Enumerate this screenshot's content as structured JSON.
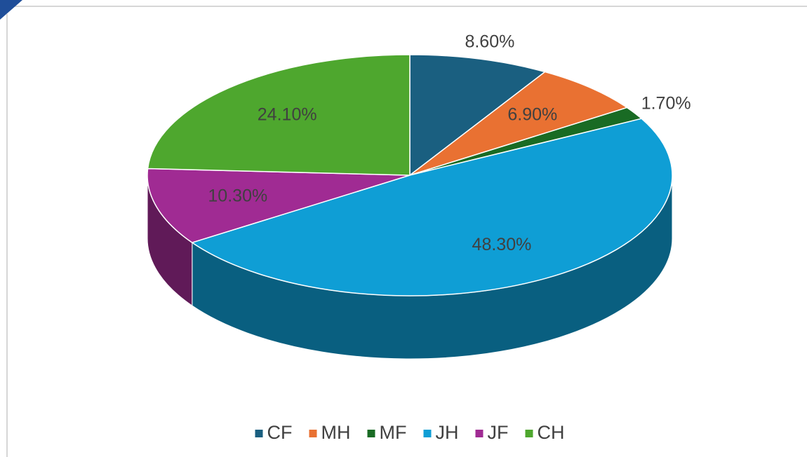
{
  "chart_data": {
    "type": "pie",
    "categories": [
      "CF",
      "MH",
      "MF",
      "JH",
      "JF",
      "CH"
    ],
    "values": [
      8.6,
      6.9,
      1.7,
      48.3,
      10.3,
      24.1
    ],
    "value_labels": [
      "8.60%",
      "6.90%",
      "1.70%",
      "48.30%",
      "10.30%",
      "24.10%"
    ],
    "colors": [
      "#1a5f80",
      "#e97132",
      "#196b24",
      "#0f9ed5",
      "#a02b93",
      "#4ea72e"
    ],
    "legend": "bottom"
  }
}
